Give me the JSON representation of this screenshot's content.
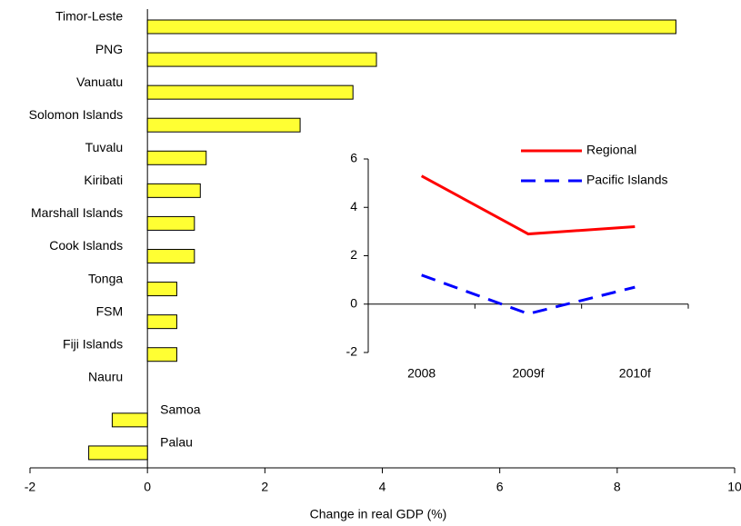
{
  "chart_data": [
    {
      "type": "hbar",
      "x_label": "Change in real GDP (%)",
      "categories": [
        "Timor-Leste",
        "PNG",
        "Vanuatu",
        "Solomon Islands",
        "Tuvalu",
        "Kiribati",
        "Marshall Islands",
        "Cook Islands",
        "Tonga",
        "FSM",
        "Fiji Islands",
        "Nauru",
        "Samoa",
        "Palau"
      ],
      "values": [
        9.0,
        3.9,
        3.5,
        2.6,
        1.0,
        0.9,
        0.8,
        0.8,
        0.5,
        0.5,
        0.5,
        0,
        -0.6,
        -1.0
      ],
      "color": "#ffff33",
      "xlim": [
        -2,
        10
      ],
      "xticks": [
        -2,
        0,
        2,
        4,
        6,
        8,
        10
      ]
    },
    {
      "type": "line",
      "categories": [
        "2008",
        "2009f",
        "2010f"
      ],
      "series": [
        {
          "name": "Regional",
          "color": "#ff0000",
          "dash": false,
          "values": [
            5.3,
            2.9,
            3.2
          ]
        },
        {
          "name": "Pacific Islands",
          "color": "#0000ff",
          "dash": true,
          "values": [
            1.2,
            -0.4,
            0.7
          ]
        }
      ],
      "ylim": [
        -2,
        6
      ],
      "yticks": [
        -2,
        0,
        2,
        4,
        6
      ]
    }
  ]
}
